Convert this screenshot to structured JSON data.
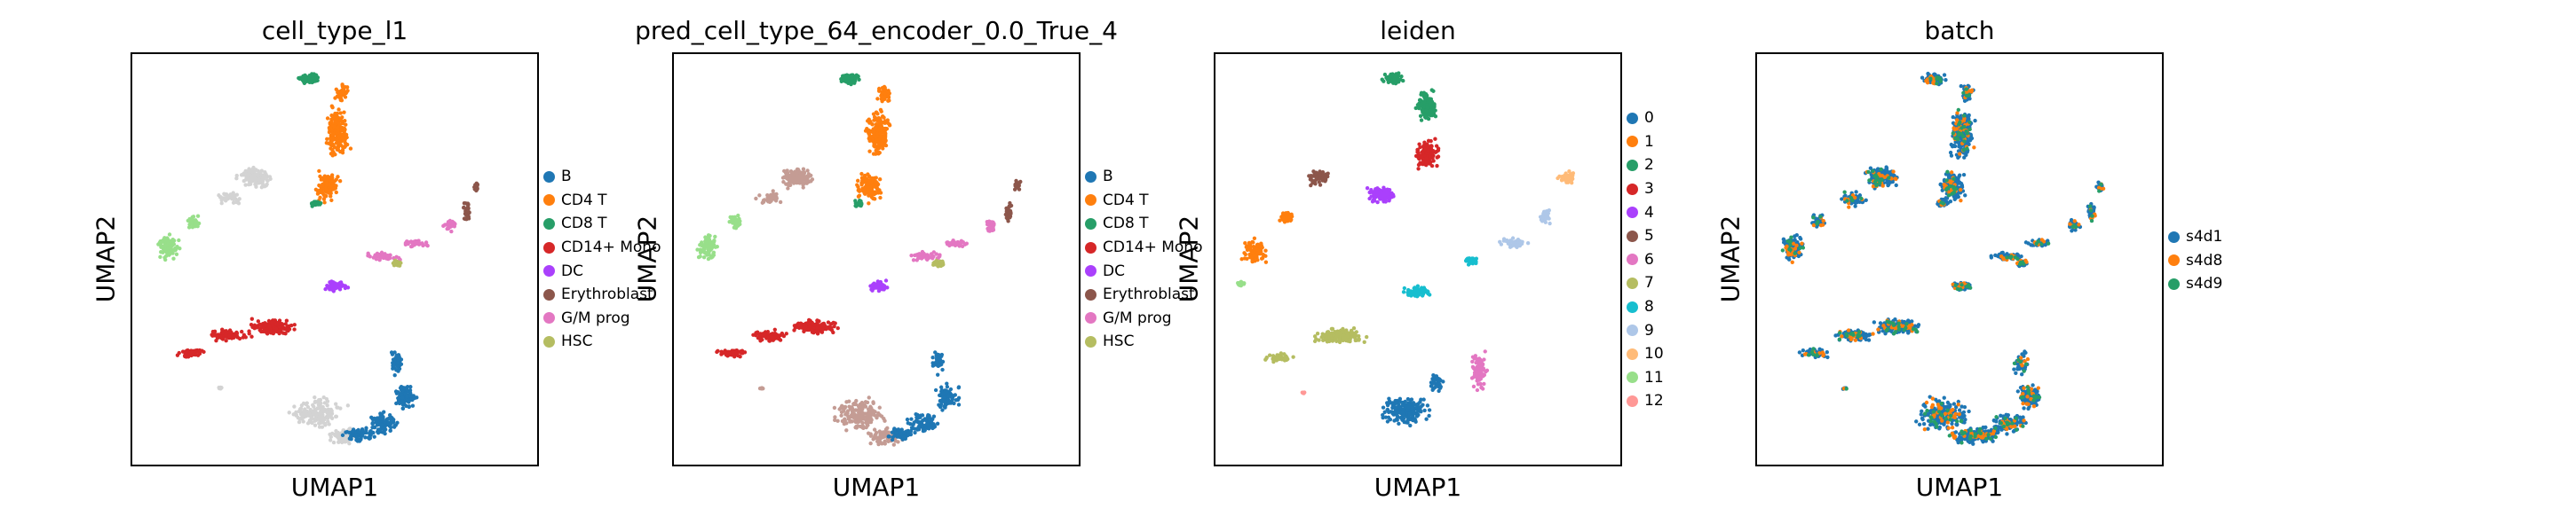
{
  "chart_data": [
    {
      "type": "scatter",
      "title": "cell_type_l1",
      "xlabel": "UMAP1",
      "ylabel": "UMAP2",
      "grid": false,
      "legend_position": "right",
      "legend": [
        {
          "label": "B",
          "color": "#1f77b4"
        },
        {
          "label": "CD4 T",
          "color": "#ff7f0e"
        },
        {
          "label": "CD8 T",
          "color": "#279e68"
        },
        {
          "label": "CD14+ Mono",
          "color": "#d62728"
        },
        {
          "label": "DC",
          "color": "#aa40fc"
        },
        {
          "label": "Erythroblast",
          "color": "#8c564b"
        },
        {
          "label": "G/M prog",
          "color": "#e377c2"
        },
        {
          "label": "HSC",
          "color": "#b5bd61"
        }
      ],
      "unlabeled_color": "#d3d3d3"
    },
    {
      "type": "scatter",
      "title": "pred_cell_type_64_encoder_0.0_True_4",
      "xlabel": "UMAP1",
      "ylabel": "UMAP2",
      "grid": false,
      "legend_position": "right",
      "legend": [
        {
          "label": "B",
          "color": "#1f77b4"
        },
        {
          "label": "CD4 T",
          "color": "#ff7f0e"
        },
        {
          "label": "CD8 T",
          "color": "#279e68"
        },
        {
          "label": "CD14+ Mono",
          "color": "#d62728"
        },
        {
          "label": "DC",
          "color": "#aa40fc"
        },
        {
          "label": "Erythroblast",
          "color": "#8c564b"
        },
        {
          "label": "G/M prog",
          "color": "#e377c2"
        },
        {
          "label": "HSC",
          "color": "#b5bd61"
        }
      ]
    },
    {
      "type": "scatter",
      "title": "leiden",
      "xlabel": "UMAP1",
      "ylabel": "UMAP2",
      "grid": false,
      "legend_position": "right",
      "legend": [
        {
          "label": "0",
          "color": "#1f77b4"
        },
        {
          "label": "1",
          "color": "#ff7f0e"
        },
        {
          "label": "2",
          "color": "#279e68"
        },
        {
          "label": "3",
          "color": "#d62728"
        },
        {
          "label": "4",
          "color": "#aa40fc"
        },
        {
          "label": "5",
          "color": "#8c564b"
        },
        {
          "label": "6",
          "color": "#e377c2"
        },
        {
          "label": "7",
          "color": "#b5bd61"
        },
        {
          "label": "8",
          "color": "#17becf"
        },
        {
          "label": "9",
          "color": "#aec7e8"
        },
        {
          "label": "10",
          "color": "#ffbb78"
        },
        {
          "label": "11",
          "color": "#98df8a"
        },
        {
          "label": "12",
          "color": "#ff9896"
        }
      ]
    },
    {
      "type": "scatter",
      "title": "batch",
      "xlabel": "UMAP1",
      "ylabel": "UMAP2",
      "grid": false,
      "legend_position": "right",
      "legend": [
        {
          "label": "s4d1",
          "color": "#1f77b4"
        },
        {
          "label": "s4d8",
          "color": "#ff7f0e"
        },
        {
          "label": "s4d9",
          "color": "#279e68"
        }
      ]
    }
  ]
}
